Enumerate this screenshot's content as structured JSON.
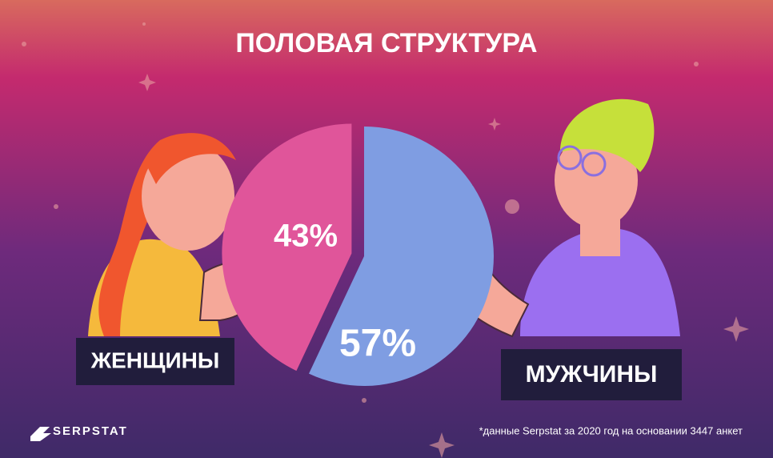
{
  "chart_data": {
    "type": "pie",
    "title": "ПОЛОВАЯ СТРУКТУРА",
    "categories": [
      "ЖЕНЩИНЫ",
      "МУЖЧИНЫ"
    ],
    "values": [
      43,
      57
    ],
    "value_labels": [
      "43%",
      "57%"
    ],
    "colors": [
      "#e0559a",
      "#7f9de2"
    ],
    "footnote": "*данные Serpstat за 2020 год на основании 3447 анкет",
    "brand": "SERPSTAT"
  }
}
